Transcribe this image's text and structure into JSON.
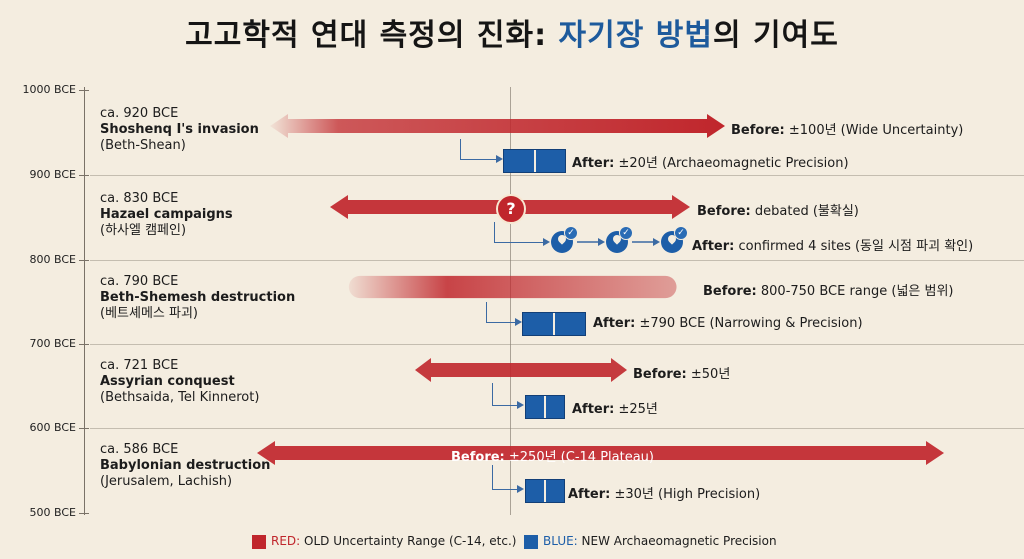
{
  "title": {
    "part1": "고고학적 연대 측정의 진화: ",
    "highlight": "자기장 방법",
    "part2": "의 기여도"
  },
  "axis": {
    "labels": [
      "1000 BCE",
      "900 BCE",
      "800 BCE",
      "700 BCE",
      "600 BCE",
      "500 BCE"
    ]
  },
  "events": [
    {
      "date": "ca. 920 BCE",
      "name": "Shoshenq I's invasion",
      "sub": "(Beth-Shean)",
      "before_label": "Before:",
      "before_text": " ±100년 (Wide Uncertainty)",
      "after_label": "After:",
      "after_text": " ±20년 (Archaeomagnetic Precision)"
    },
    {
      "date": "ca. 830 BCE",
      "name": "Hazael campaigns",
      "sub": "(하사엘 캠페인)",
      "before_label": "Before:",
      "before_text": " debated (불확실)",
      "after_label": "After:",
      "after_text": " confirmed 4 sites (동일 시점 파괴 확인)"
    },
    {
      "date": "ca. 790 BCE",
      "name": "Beth-Shemesh destruction",
      "sub": "(베트셰메스 파괴)",
      "before_label": "Before:",
      "before_text": " 800-750 BCE range (넓은 범위)",
      "after_label": "After:",
      "after_text": " ±790 BCE (Narrowing & Precision)"
    },
    {
      "date": "ca. 721 BCE",
      "name": "Assyrian conquest",
      "sub": "(Bethsaida, Tel Kinnerot)",
      "before_label": "Before:",
      "before_text": " ±50년",
      "after_label": "After:",
      "after_text": " ±25년"
    },
    {
      "date": "ca. 586 BCE",
      "name": "Babylonian destruction",
      "sub": "(Jerusalem, Lachish)",
      "before_label": "Before:",
      "before_text": " ±250년 (C-14 Plateau)",
      "after_label": "After:",
      "after_text": " ±30년 (High Precision)"
    }
  ],
  "question_mark": "?",
  "legend": {
    "red_label": "RED:",
    "red_text": " OLD Uncertainty Range (C-14, etc.)",
    "blue_label": "BLUE:",
    "blue_text": " NEW Archaeomagnetic Precision"
  },
  "colors": {
    "red": "#c0262c",
    "blue": "#1d5ea8",
    "background": "#f4ede0"
  }
}
